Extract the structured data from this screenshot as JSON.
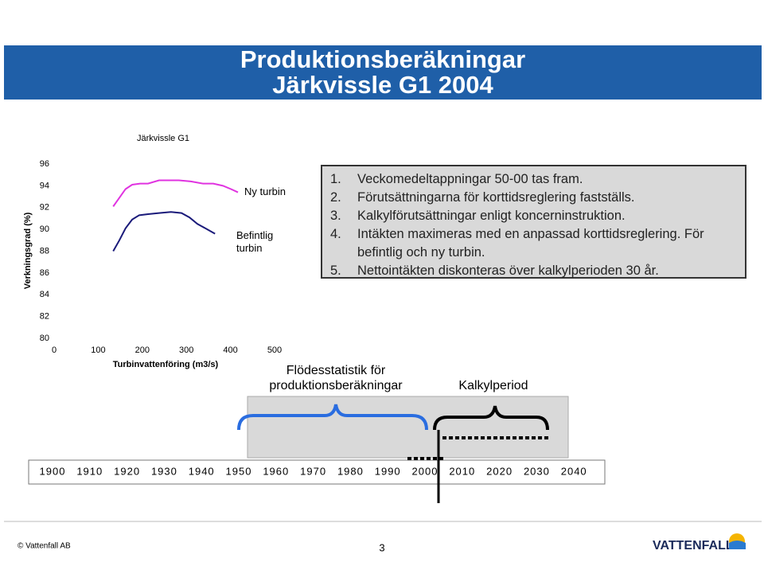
{
  "header": {
    "title": "Produktionsberäkningar",
    "subtitle": "Järkvissle G1 2004"
  },
  "chart_data": {
    "type": "line",
    "title": "Järkvissle G1",
    "x_label": "Turbinvattenföring (m3/s)",
    "y_label": "Verkningsgrad (%)",
    "xlim": [
      0,
      500
    ],
    "xticks": [
      0,
      100,
      200,
      300,
      400,
      500
    ],
    "ylim": [
      80,
      96
    ],
    "yticks": [
      80,
      82,
      84,
      86,
      88,
      90,
      92,
      94,
      96
    ],
    "series": [
      {
        "name": "Ny turbin",
        "color": "#e033e0",
        "x": [
          134,
          148,
          162,
          177,
          195,
          213,
          238,
          260,
          283,
          310,
          338,
          361,
          383,
          401,
          417
        ],
        "values": [
          92.1,
          92.9,
          93.7,
          94.1,
          94.2,
          94.2,
          94.5,
          94.5,
          94.5,
          94.4,
          94.2,
          94.2,
          94.0,
          93.7,
          93.4
        ]
      },
      {
        "name": "Befintlig turbin",
        "color": "#1a1a7a",
        "x": [
          134,
          148,
          162,
          177,
          193,
          213,
          238,
          265,
          289,
          307,
          325,
          343,
          365
        ],
        "values": [
          88.0,
          89.0,
          90.1,
          90.9,
          91.3,
          91.4,
          91.5,
          91.6,
          91.5,
          91.1,
          90.5,
          90.1,
          89.6
        ]
      }
    ]
  },
  "list": {
    "items": [
      {
        "number": "1.",
        "text": "Veckomedeltappningar 50-00 tas fram."
      },
      {
        "number": "2.",
        "text": "Förutsättningarna för korttidsreglering fastställs."
      },
      {
        "number": "3.",
        "text": "Kalkylförutsättningar enligt koncerninstruktion."
      },
      {
        "number": "4.",
        "text": "Intäkten maximeras med en anpassad korttidsreglering. För befintlig och ny turbin."
      },
      {
        "number": "5.",
        "text": "Nettointäkten diskonteras över kalkylperioden 30 år."
      }
    ]
  },
  "timeline": {
    "flow_label": "Flödesstatistik för produktionsberäkningar",
    "period_label": "Kalkylperiod",
    "years": [
      1900,
      1910,
      1920,
      1930,
      1940,
      1950,
      1960,
      1970,
      1980,
      1990,
      2000,
      2010,
      2020,
      2030,
      2040
    ]
  },
  "footer": {
    "copyright": "© Vattenfall AB",
    "page": "3",
    "logo": "VATTENFALL"
  }
}
